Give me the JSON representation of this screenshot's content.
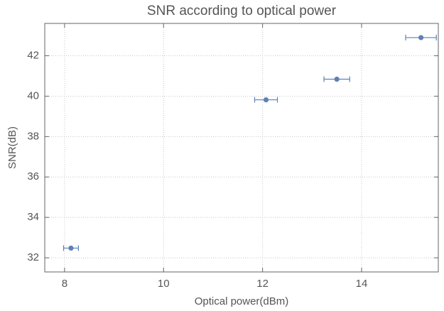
{
  "chart_data": {
    "type": "scatter",
    "title": "SNR according to optical power",
    "x_label": "Optical power(dBm)",
    "y_label": "SNR(dB)",
    "x": [
      8.13,
      12.07,
      13.5,
      15.2
    ],
    "values": [
      32.48,
      39.82,
      40.84,
      42.9
    ],
    "xerr": [
      0.15,
      0.23,
      0.26,
      0.31
    ],
    "color": "#5e81b5",
    "xlim": [
      7.6,
      15.55
    ],
    "ylim": [
      31.3,
      43.6
    ],
    "xticks": [
      8,
      10,
      12,
      14
    ],
    "yticks": [
      32,
      34,
      36,
      38,
      40,
      42
    ],
    "grid": true
  }
}
